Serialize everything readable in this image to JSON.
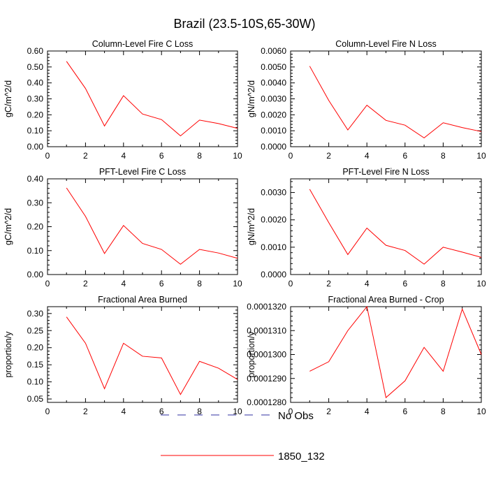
{
  "title": "Brazil (23.5-10S,65-30W)",
  "colors": {
    "series": "#ff0000",
    "no_obs": "#3030a0",
    "axis": "#000000",
    "background": "#ffffff"
  },
  "legend": [
    {
      "label": "No Obs",
      "style": "dashed",
      "color": "#3030a0"
    },
    {
      "label": "1850_132",
      "style": "solid",
      "color": "#ff0000"
    }
  ],
  "chart_data": [
    {
      "type": "line",
      "title": "Column-Level Fire C Loss",
      "ylabel": "gC/m^2/d",
      "xlabel": "",
      "xlim": [
        0,
        10
      ],
      "ylim": [
        0,
        0.6
      ],
      "xticks": [
        "0",
        "2",
        "4",
        "6",
        "8",
        "10"
      ],
      "xtick_values": [
        0,
        2,
        4,
        6,
        8,
        10
      ],
      "yticks": [
        "0.00",
        "0.10",
        "0.20",
        "0.30",
        "0.40",
        "0.50",
        "0.60"
      ],
      "ytick_values": [
        0,
        0.1,
        0.2,
        0.3,
        0.4,
        0.5,
        0.6
      ],
      "series": [
        {
          "name": "1850_132",
          "x": [
            1,
            2,
            3,
            4,
            5,
            6,
            7,
            8,
            9,
            10
          ],
          "values": [
            0.535,
            0.365,
            0.13,
            0.32,
            0.205,
            0.17,
            0.068,
            0.167,
            0.145,
            0.115
          ]
        }
      ]
    },
    {
      "type": "line",
      "title": "Column-Level Fire N Loss",
      "ylabel": "gN/m^2/d",
      "xlabel": "",
      "xlim": [
        0,
        10
      ],
      "ylim": [
        0,
        0.006
      ],
      "xticks": [
        "0",
        "2",
        "4",
        "6",
        "8",
        "10"
      ],
      "xtick_values": [
        0,
        2,
        4,
        6,
        8,
        10
      ],
      "yticks": [
        "0.0000",
        "0.0010",
        "0.0020",
        "0.0030",
        "0.0040",
        "0.0050",
        "0.0060"
      ],
      "ytick_values": [
        0,
        0.001,
        0.002,
        0.003,
        0.004,
        0.005,
        0.006
      ],
      "series": [
        {
          "name": "1850_132",
          "x": [
            1,
            2,
            3,
            4,
            5,
            6,
            7,
            8,
            9,
            10
          ],
          "values": [
            0.00505,
            0.0029,
            0.00105,
            0.0026,
            0.00165,
            0.00135,
            0.00055,
            0.0015,
            0.0012,
            0.00095
          ]
        }
      ]
    },
    {
      "type": "line",
      "title": "PFT-Level Fire C Loss",
      "ylabel": "gC/m^2/d",
      "xlabel": "",
      "xlim": [
        0,
        10
      ],
      "ylim": [
        0,
        0.4
      ],
      "xticks": [
        "0",
        "2",
        "4",
        "6",
        "8",
        "10"
      ],
      "xtick_values": [
        0,
        2,
        4,
        6,
        8,
        10
      ],
      "yticks": [
        "0.00",
        "0.10",
        "0.20",
        "0.30",
        "0.40"
      ],
      "ytick_values": [
        0,
        0.1,
        0.2,
        0.3,
        0.4
      ],
      "series": [
        {
          "name": "1850_132",
          "x": [
            1,
            2,
            3,
            4,
            5,
            6,
            7,
            8,
            9,
            10
          ],
          "values": [
            0.362,
            0.243,
            0.088,
            0.205,
            0.13,
            0.105,
            0.043,
            0.105,
            0.09,
            0.068
          ]
        }
      ]
    },
    {
      "type": "line",
      "title": "PFT-Level Fire N Loss",
      "ylabel": "gN/m^2/d",
      "xlabel": "",
      "xlim": [
        0,
        10
      ],
      "ylim": [
        0,
        0.0035
      ],
      "xticks": [
        "0",
        "2",
        "4",
        "6",
        "8",
        "10"
      ],
      "xtick_values": [
        0,
        2,
        4,
        6,
        8,
        10
      ],
      "yticks": [
        "0.0000",
        "0.0010",
        "0.0020",
        "0.0030"
      ],
      "ytick_values": [
        0,
        0.001,
        0.002,
        0.003
      ],
      "series": [
        {
          "name": "1850_132",
          "x": [
            1,
            2,
            3,
            4,
            5,
            6,
            7,
            8,
            9,
            10
          ],
          "values": [
            0.00312,
            0.0019,
            0.00073,
            0.0017,
            0.00107,
            0.00088,
            0.00038,
            0.001,
            0.00082,
            0.00063
          ]
        }
      ]
    },
    {
      "type": "line",
      "title": "Fractional Area Burned",
      "ylabel": "proportion/y",
      "xlabel": "",
      "xlim": [
        0,
        10
      ],
      "ylim": [
        0.04,
        0.32
      ],
      "xticks": [
        "0",
        "2",
        "4",
        "6",
        "8",
        "10"
      ],
      "xtick_values": [
        0,
        2,
        4,
        6,
        8,
        10
      ],
      "yticks": [
        "0.05",
        "0.10",
        "0.15",
        "0.20",
        "0.25",
        "0.30"
      ],
      "ytick_values": [
        0.05,
        0.1,
        0.15,
        0.2,
        0.25,
        0.3
      ],
      "series": [
        {
          "name": "1850_132",
          "x": [
            1,
            2,
            3,
            4,
            5,
            6,
            7,
            8,
            9,
            10
          ],
          "values": [
            0.29,
            0.213,
            0.08,
            0.213,
            0.175,
            0.17,
            0.063,
            0.16,
            0.14,
            0.107
          ]
        }
      ]
    },
    {
      "type": "line",
      "title": "Fractional Area Burned - Crop",
      "ylabel": "proportion/y",
      "xlabel": "",
      "xlim": [
        0,
        10
      ],
      "ylim": [
        0.000128,
        0.000132
      ],
      "xticks": [
        "0",
        "2",
        "4",
        "6",
        "8",
        "10"
      ],
      "xtick_values": [
        0,
        2,
        4,
        6,
        8,
        10
      ],
      "yticks": [
        "0.0001280",
        "0.0001290",
        "0.0001300",
        "0.0001310",
        "0.0001320"
      ],
      "ytick_values": [
        0.000128,
        0.000129,
        0.00013,
        0.000131,
        0.000132
      ],
      "series": [
        {
          "name": "1850_132",
          "x": [
            1,
            2,
            3,
            4,
            5,
            6,
            7,
            8,
            9,
            10
          ],
          "values": [
            0.0001293,
            0.0001297,
            0.000131,
            0.000132,
            0.0001282,
            0.0001289,
            0.0001303,
            0.0001293,
            0.0001319,
            0.00013
          ]
        }
      ]
    }
  ]
}
